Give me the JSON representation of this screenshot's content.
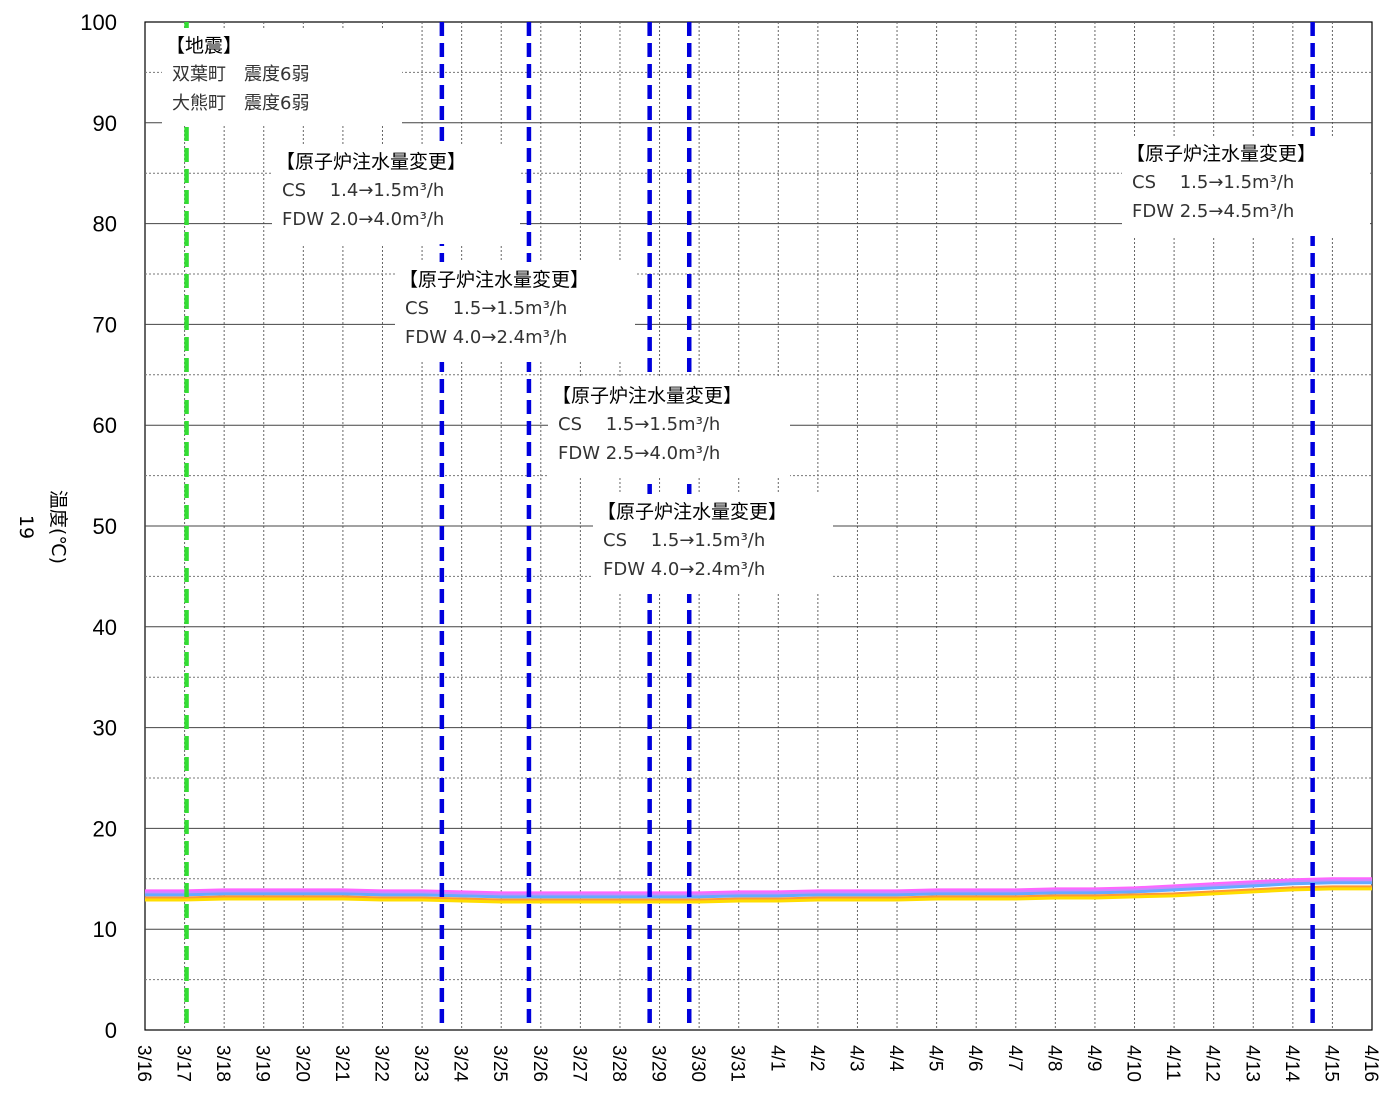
{
  "chart_data": {
    "type": "line",
    "ylabel": "温度(℃)",
    "page_number": "19",
    "ylim": [
      0,
      100
    ],
    "yticks": [
      0,
      10,
      20,
      30,
      40,
      50,
      60,
      70,
      80,
      90,
      100
    ],
    "grid": true,
    "categories": [
      "3/16",
      "3/17",
      "3/18",
      "3/19",
      "3/20",
      "3/21",
      "3/22",
      "3/23",
      "3/24",
      "3/25",
      "3/26",
      "3/27",
      "3/28",
      "3/29",
      "3/30",
      "3/31",
      "4/1",
      "4/2",
      "4/3",
      "4/4",
      "4/5",
      "4/6",
      "4/7",
      "4/8",
      "4/9",
      "4/10",
      "4/11",
      "4/12",
      "4/13",
      "4/14",
      "4/15",
      "4/16"
    ],
    "series": [
      {
        "color": "#ff66ff",
        "values": [
          13.8,
          13.8,
          13.9,
          13.9,
          13.9,
          13.9,
          13.8,
          13.8,
          13.7,
          13.6,
          13.6,
          13.6,
          13.6,
          13.6,
          13.6,
          13.7,
          13.7,
          13.8,
          13.8,
          13.8,
          13.9,
          13.9,
          13.9,
          14.0,
          14.0,
          14.1,
          14.3,
          14.5,
          14.7,
          14.9,
          15.0,
          15.0
        ]
      },
      {
        "color": "#cc88ff",
        "values": [
          13.6,
          13.6,
          13.7,
          13.7,
          13.7,
          13.7,
          13.6,
          13.6,
          13.5,
          13.4,
          13.4,
          13.4,
          13.4,
          13.4,
          13.4,
          13.5,
          13.5,
          13.6,
          13.6,
          13.6,
          13.7,
          13.7,
          13.7,
          13.8,
          13.8,
          13.9,
          14.1,
          14.3,
          14.5,
          14.7,
          14.8,
          14.8
        ]
      },
      {
        "color": "#66aaff",
        "values": [
          13.4,
          13.4,
          13.5,
          13.5,
          13.5,
          13.5,
          13.4,
          13.4,
          13.3,
          13.2,
          13.2,
          13.2,
          13.2,
          13.2,
          13.2,
          13.3,
          13.3,
          13.4,
          13.4,
          13.4,
          13.5,
          13.5,
          13.5,
          13.6,
          13.6,
          13.7,
          13.9,
          14.1,
          14.3,
          14.5,
          14.6,
          14.6
        ]
      },
      {
        "color": "#ff9933",
        "values": [
          13.1,
          13.1,
          13.2,
          13.2,
          13.2,
          13.2,
          13.1,
          13.1,
          13.0,
          12.9,
          12.9,
          12.9,
          12.9,
          12.9,
          12.9,
          13.0,
          13.0,
          13.1,
          13.1,
          13.1,
          13.2,
          13.2,
          13.2,
          13.3,
          13.3,
          13.4,
          13.5,
          13.7,
          13.9,
          14.1,
          14.2,
          14.2
        ]
      },
      {
        "color": "#ffdd00",
        "values": [
          12.9,
          12.9,
          13.0,
          13.0,
          13.0,
          13.0,
          12.9,
          12.9,
          12.8,
          12.7,
          12.7,
          12.7,
          12.7,
          12.7,
          12.7,
          12.8,
          12.8,
          12.9,
          12.9,
          12.9,
          13.0,
          13.0,
          13.0,
          13.1,
          13.1,
          13.2,
          13.3,
          13.5,
          13.7,
          13.9,
          14.0,
          14.0
        ]
      }
    ],
    "event_lines": [
      {
        "x": 1.05,
        "color": "#33dd33",
        "style": "dashed"
      },
      {
        "x": 7.5,
        "color": "#0000dd",
        "style": "dashed"
      },
      {
        "x": 9.7,
        "color": "#0000dd",
        "style": "dashed"
      },
      {
        "x": 12.75,
        "color": "#0000dd",
        "style": "dashed"
      },
      {
        "x": 13.75,
        "color": "#0000dd",
        "style": "dashed"
      },
      {
        "x": 29.5,
        "color": "#0000dd",
        "style": "dashed"
      }
    ],
    "annotations": [
      {
        "id": "quake",
        "title": "【地震】",
        "lines": [
          "双葉町　震度6弱",
          "大熊町　震度6弱"
        ]
      },
      {
        "id": "inj1",
        "title": "【原子炉注水量変更】",
        "lines": [
          "CS　 1.4→1.5m³/h",
          "FDW  2.0→4.0m³/h"
        ]
      },
      {
        "id": "inj2",
        "title": "【原子炉注水量変更】",
        "lines": [
          "CS　 1.5→1.5m³/h",
          "FDW  4.0→2.4m³/h"
        ]
      },
      {
        "id": "inj3",
        "title": "【原子炉注水量変更】",
        "lines": [
          "CS　 1.5→1.5m³/h",
          "FDW  2.5→4.0m³/h"
        ]
      },
      {
        "id": "inj4",
        "title": "【原子炉注水量変更】",
        "lines": [
          "CS　 1.5→1.5m³/h",
          "FDW  4.0→2.4m³/h"
        ]
      },
      {
        "id": "inj5",
        "title": "【原子炉注水量変更】",
        "lines": [
          "CS　 1.5→1.5m³/h",
          "FDW  2.5→4.5m³/h"
        ]
      }
    ]
  }
}
